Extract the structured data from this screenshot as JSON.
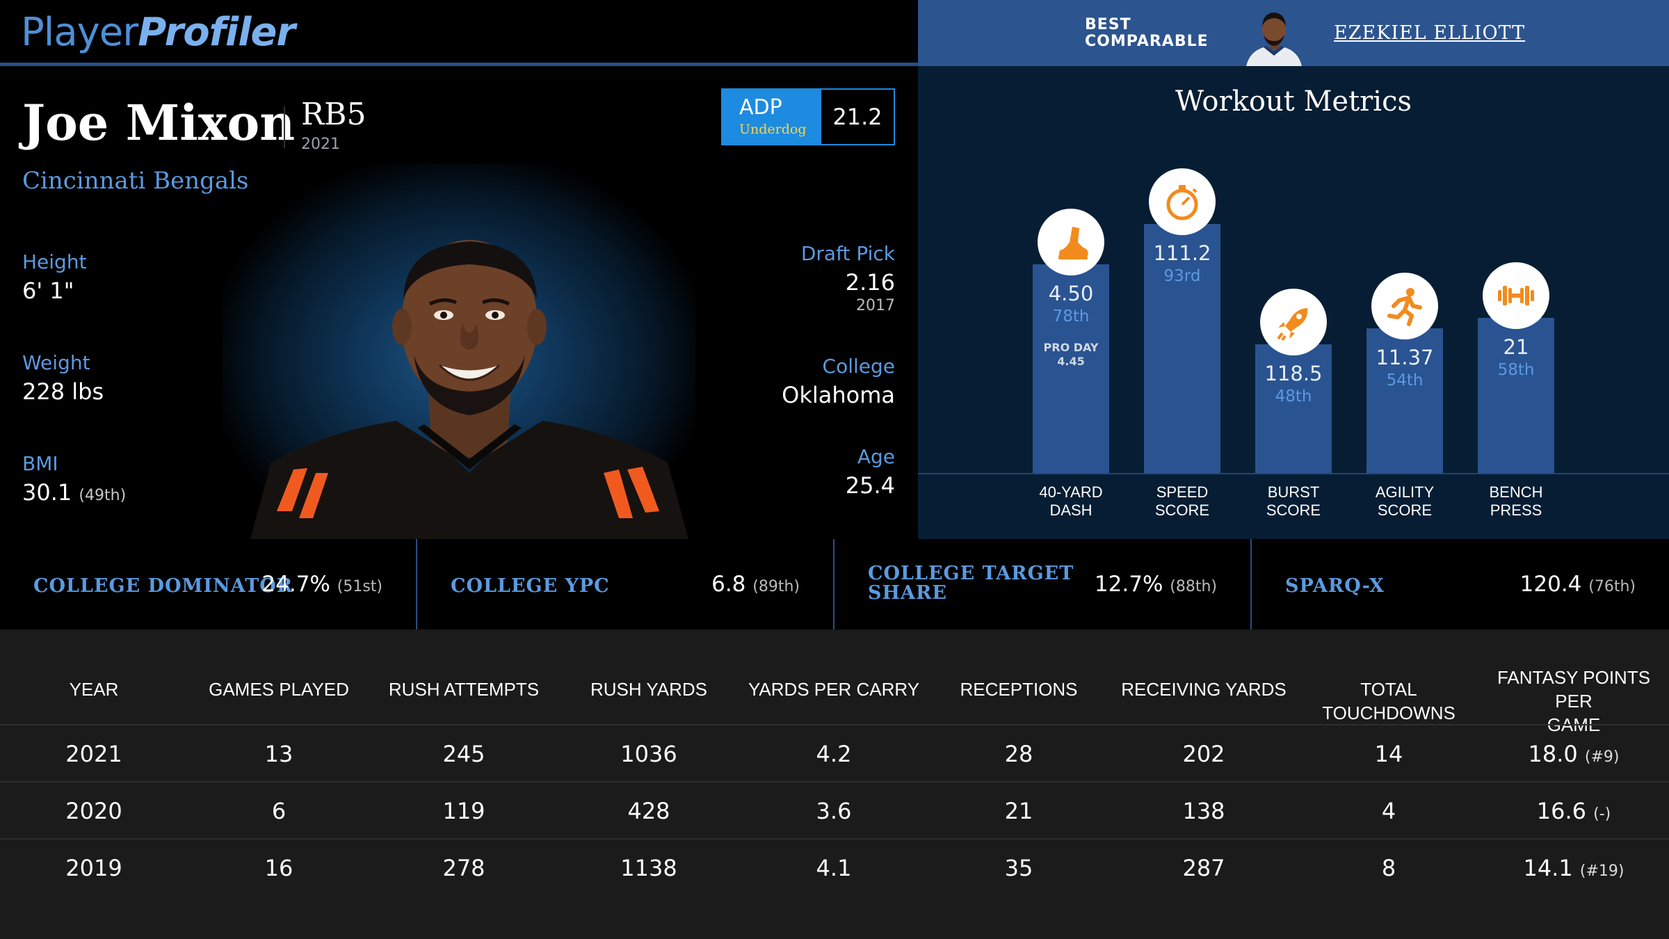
{
  "brand": {
    "logo_part1": "Player",
    "logo_part2": "Profiler"
  },
  "player": {
    "name": "Joe Mixon",
    "position": "RB5",
    "season": "2021",
    "team": "Cincinnati Bengals",
    "adp": {
      "label": "ADP",
      "source": "Underdog",
      "value": "21.2"
    },
    "left_stats": [
      {
        "label": "Height",
        "value": "6' 1\"",
        "rank": ""
      },
      {
        "label": "Weight",
        "value": "228 lbs",
        "rank": ""
      },
      {
        "label": "BMI",
        "value": "30.1",
        "rank": "(49th)"
      }
    ],
    "right_stats": [
      {
        "label": "Draft Pick",
        "value": "2.16",
        "year": "2017"
      },
      {
        "label": "College",
        "value": "Oklahoma",
        "year": ""
      },
      {
        "label": "Age",
        "value": "25.4",
        "year": ""
      }
    ]
  },
  "comparable": {
    "label_line1": "BEST",
    "label_line2": "COMPARABLE",
    "name": "EZEKIEL ELLIOTT"
  },
  "workout": {
    "title": "Workout Metrics",
    "metrics": [
      {
        "name_line1": "40-YARD",
        "name_line2": "DASH",
        "value": "4.50",
        "percentile": "78th",
        "note_line1": "PRO DAY",
        "note_line2": "4.45",
        "icon": "shoe-icon",
        "percentile_num": 78
      },
      {
        "name_line1": "SPEED",
        "name_line2": "SCORE",
        "value": "111.2",
        "percentile": "93rd",
        "note_line1": "",
        "note_line2": "",
        "icon": "stopwatch-icon",
        "percentile_num": 93
      },
      {
        "name_line1": "BURST",
        "name_line2": "SCORE",
        "value": "118.5",
        "percentile": "48th",
        "note_line1": "",
        "note_line2": "",
        "icon": "rocket-icon",
        "percentile_num": 48
      },
      {
        "name_line1": "AGILITY",
        "name_line2": "SCORE",
        "value": "11.37",
        "percentile": "54th",
        "note_line1": "",
        "note_line2": "",
        "icon": "runner-icon",
        "percentile_num": 54
      },
      {
        "name_line1": "BENCH",
        "name_line2": "PRESS",
        "value": "21",
        "percentile": "58th",
        "note_line1": "",
        "note_line2": "",
        "icon": "dumbbell-icon",
        "percentile_num": 58
      }
    ],
    "accent_color": "#f28b1e"
  },
  "college": [
    {
      "label_line1": "COLLEGE DOMINATOR",
      "label_line2": "",
      "value": "24.7%",
      "rank": "(51st)"
    },
    {
      "label_line1": "COLLEGE YPC",
      "label_line2": "",
      "value": "6.8",
      "rank": "(89th)"
    },
    {
      "label_line1": "COLLEGE TARGET",
      "label_line2": "SHARE",
      "value": "12.7%",
      "rank": "(88th)"
    },
    {
      "label_line1": "SPARQ-X",
      "label_line2": "",
      "value": "120.4",
      "rank": "(76th)"
    }
  ],
  "stats_table": {
    "headers": [
      [
        "YEAR",
        ""
      ],
      [
        "GAMES PLAYED",
        ""
      ],
      [
        "RUSH ATTEMPTS",
        ""
      ],
      [
        "RUSH YARDS",
        ""
      ],
      [
        "YARDS PER CARRY",
        ""
      ],
      [
        "RECEPTIONS",
        ""
      ],
      [
        "RECEIVING YARDS",
        ""
      ],
      [
        "TOTAL TOUCHDOWNS",
        ""
      ],
      [
        "FANTASY POINTS PER",
        "GAME"
      ]
    ],
    "rows": [
      {
        "cells": [
          "2021",
          "13",
          "245",
          "1036",
          "4.2",
          "28",
          "202",
          "14",
          "18.0"
        ],
        "fp_rank": "(#9)"
      },
      {
        "cells": [
          "2020",
          "6",
          "119",
          "428",
          "3.6",
          "21",
          "138",
          "4",
          "16.6"
        ],
        "fp_rank": "(-)"
      },
      {
        "cells": [
          "2019",
          "16",
          "278",
          "1138",
          "4.1",
          "35",
          "287",
          "8",
          "14.1"
        ],
        "fp_rank": "(#19)"
      }
    ]
  },
  "colors": {
    "brand_blue": "#5b9ae0",
    "comparable_bar": "#2c548f",
    "adp_blue": "#1d8be0",
    "bar_blue": "#2a5391"
  }
}
